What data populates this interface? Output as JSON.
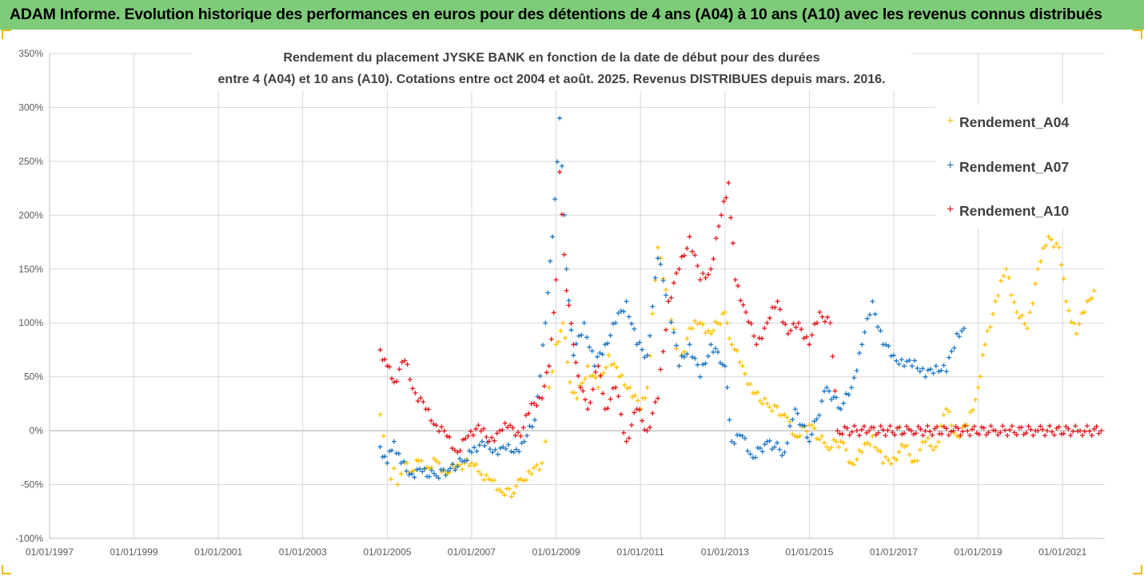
{
  "banner": {
    "title": "ADAM Informe. Evolution historique des performances en euros pour des détentions de 4 ans (A04) à 10 ans (A10) avec les revenus connus distribués"
  },
  "colors": {
    "banner_bg": "#7ecb7a",
    "A04": "#ffc000",
    "A07": "#1f77c4",
    "A10": "#e8141b",
    "grid": "#d9d9d9",
    "axis_text": "#595959"
  },
  "chart_data": {
    "type": "scatter",
    "title_lines": [
      "Rendement du placement JYSKE BANK en fonction de la date de début pour des durées",
      "entre 4 (A04) et 10 ans (A10). Cotations entre oct 2004 et août. 2025. Revenus DISTRIBUES depuis mars. 2016."
    ],
    "xlabel": "",
    "ylabel": "",
    "x_ticks": [
      "01/01/1997",
      "01/01/1999",
      "01/01/2001",
      "01/01/2003",
      "01/01/2005",
      "01/01/2007",
      "01/01/2009",
      "01/01/2011",
      "01/01/2013",
      "01/01/2015",
      "01/01/2017",
      "01/01/2019",
      "01/01/2021"
    ],
    "x_range": [
      "1997-01-01",
      "2022-01-01"
    ],
    "y_ticks": [
      "350%",
      "300%",
      "250%",
      "200%",
      "150%",
      "100%",
      "50%",
      "0%",
      "-50%",
      "-100%"
    ],
    "y_range": [
      -100,
      350
    ],
    "grid": "vertical+horizontal",
    "legend_position": "right",
    "marker": "+",
    "series": [
      {
        "name": "Rendement_A04",
        "points": [
          [
            "2004-11-01",
            15
          ],
          [
            "2004-12-01",
            -5
          ],
          [
            "2005-01-01",
            -30
          ],
          [
            "2005-02-01",
            -45
          ],
          [
            "2005-03-01",
            -35
          ],
          [
            "2005-04-01",
            -50
          ],
          [
            "2005-05-01",
            -40
          ],
          [
            "2005-06-01",
            -30
          ],
          [
            "2005-08-01",
            -38
          ],
          [
            "2005-10-01",
            -28
          ],
          [
            "2006-01-01",
            -35
          ],
          [
            "2006-03-01",
            -28
          ],
          [
            "2006-06-01",
            -40
          ],
          [
            "2006-09-01",
            -32
          ],
          [
            "2007-01-01",
            -30
          ],
          [
            "2007-03-01",
            -38
          ],
          [
            "2007-06-01",
            -45
          ],
          [
            "2007-09-01",
            -55
          ],
          [
            "2008-01-01",
            -58
          ],
          [
            "2008-03-01",
            -45
          ],
          [
            "2008-06-01",
            -40
          ],
          [
            "2008-09-01",
            -30
          ],
          [
            "2008-10-01",
            -10
          ],
          [
            "2008-11-01",
            40
          ],
          [
            "2008-12-01",
            55
          ],
          [
            "2009-01-01",
            80
          ],
          [
            "2009-03-01",
            100
          ],
          [
            "2009-05-01",
            45
          ],
          [
            "2009-07-01",
            30
          ],
          [
            "2009-10-01",
            60
          ],
          [
            "2010-01-01",
            40
          ],
          [
            "2010-04-01",
            70
          ],
          [
            "2010-07-01",
            50
          ],
          [
            "2010-10-01",
            40
          ],
          [
            "2011-01-01",
            20
          ],
          [
            "2011-03-01",
            40
          ],
          [
            "2011-06-01",
            170
          ],
          [
            "2011-09-01",
            120
          ],
          [
            "2011-12-01",
            60
          ],
          [
            "2012-03-01",
            95
          ],
          [
            "2012-06-01",
            100
          ],
          [
            "2012-09-01",
            90
          ],
          [
            "2013-01-01",
            110
          ],
          [
            "2013-03-01",
            80
          ],
          [
            "2013-06-01",
            60
          ],
          [
            "2013-09-01",
            35
          ],
          [
            "2014-01-01",
            25
          ],
          [
            "2014-06-01",
            15
          ],
          [
            "2014-09-01",
            -5
          ],
          [
            "2015-01-01",
            5
          ],
          [
            "2015-06-01",
            -15
          ],
          [
            "2015-10-01",
            -10
          ],
          [
            "2016-01-01",
            -30
          ],
          [
            "2016-04-01",
            -20
          ],
          [
            "2016-07-01",
            -5
          ],
          [
            "2016-10-01",
            -30
          ],
          [
            "2017-01-01",
            -25
          ],
          [
            "2017-04-01",
            -15
          ],
          [
            "2017-07-01",
            -28
          ],
          [
            "2017-10-01",
            -10
          ],
          [
            "2018-01-01",
            -15
          ],
          [
            "2018-04-01",
            20
          ],
          [
            "2018-07-01",
            -5
          ],
          [
            "2018-10-01",
            5
          ],
          [
            "2019-01-01",
            40
          ],
          [
            "2019-03-01",
            80
          ],
          [
            "2019-06-01",
            120
          ],
          [
            "2019-09-01",
            150
          ],
          [
            "2019-12-01",
            110
          ],
          [
            "2020-03-01",
            95
          ],
          [
            "2020-06-01",
            150
          ],
          [
            "2020-09-01",
            180
          ],
          [
            "2020-12-01",
            170
          ],
          [
            "2021-02-01",
            120
          ],
          [
            "2021-05-01",
            90
          ],
          [
            "2021-08-01",
            120
          ],
          [
            "2021-10-01",
            130
          ]
        ]
      },
      {
        "name": "Rendement_A07",
        "points": [
          [
            "2004-11-01",
            -15
          ],
          [
            "2005-01-01",
            -30
          ],
          [
            "2005-03-01",
            -10
          ],
          [
            "2005-05-01",
            -30
          ],
          [
            "2005-08-01",
            -40
          ],
          [
            "2005-11-01",
            -38
          ],
          [
            "2006-03-01",
            -42
          ],
          [
            "2006-07-01",
            -35
          ],
          [
            "2006-11-01",
            -28
          ],
          [
            "2007-01-01",
            -20
          ],
          [
            "2007-04-01",
            -10
          ],
          [
            "2007-07-01",
            -20
          ],
          [
            "2007-10-01",
            -15
          ],
          [
            "2008-01-01",
            -20
          ],
          [
            "2008-04-01",
            -10
          ],
          [
            "2008-07-01",
            10
          ],
          [
            "2008-10-01",
            100
          ],
          [
            "2008-12-01",
            180
          ],
          [
            "2009-02-01",
            290
          ],
          [
            "2009-04-01",
            150
          ],
          [
            "2009-06-01",
            70
          ],
          [
            "2009-09-01",
            100
          ],
          [
            "2009-12-01",
            60
          ],
          [
            "2010-03-01",
            80
          ],
          [
            "2010-06-01",
            100
          ],
          [
            "2010-09-01",
            120
          ],
          [
            "2010-12-01",
            80
          ],
          [
            "2011-03-01",
            70
          ],
          [
            "2011-06-01",
            160
          ],
          [
            "2011-09-01",
            120
          ],
          [
            "2011-12-01",
            60
          ],
          [
            "2012-03-01",
            80
          ],
          [
            "2012-06-01",
            50
          ],
          [
            "2012-09-01",
            80
          ],
          [
            "2013-01-01",
            60
          ],
          [
            "2013-03-01",
            -10
          ],
          [
            "2013-06-01",
            -5
          ],
          [
            "2013-09-01",
            -25
          ],
          [
            "2014-01-01",
            -10
          ],
          [
            "2014-06-01",
            -20
          ],
          [
            "2014-09-01",
            20
          ],
          [
            "2015-01-01",
            -10
          ],
          [
            "2015-06-01",
            40
          ],
          [
            "2015-10-01",
            20
          ],
          [
            "2016-01-01",
            40
          ],
          [
            "2016-04-01",
            80
          ],
          [
            "2016-07-01",
            120
          ],
          [
            "2016-10-01",
            80
          ],
          [
            "2017-01-01",
            70
          ],
          [
            "2017-04-01",
            60
          ],
          [
            "2017-07-01",
            65
          ],
          [
            "2017-10-01",
            50
          ],
          [
            "2018-01-01",
            60
          ],
          [
            "2018-04-01",
            55
          ],
          [
            "2018-07-01",
            90
          ],
          [
            "2018-09-01",
            95
          ]
        ]
      },
      {
        "name": "Rendement_A10",
        "points": [
          [
            "2004-11-01",
            75
          ],
          [
            "2005-01-01",
            60
          ],
          [
            "2005-03-01",
            45
          ],
          [
            "2005-06-01",
            65
          ],
          [
            "2005-09-01",
            35
          ],
          [
            "2005-12-01",
            20
          ],
          [
            "2006-03-01",
            5
          ],
          [
            "2006-06-01",
            -5
          ],
          [
            "2006-09-01",
            -20
          ],
          [
            "2006-12-01",
            -5
          ],
          [
            "2007-03-01",
            5
          ],
          [
            "2007-06-01",
            -10
          ],
          [
            "2007-09-01",
            0
          ],
          [
            "2007-12-01",
            5
          ],
          [
            "2008-03-01",
            -5
          ],
          [
            "2008-06-01",
            25
          ],
          [
            "2008-09-01",
            30
          ],
          [
            "2008-11-01",
            60
          ],
          [
            "2009-01-01",
            140
          ],
          [
            "2009-02-01",
            240
          ],
          [
            "2009-04-01",
            130
          ],
          [
            "2009-06-01",
            80
          ],
          [
            "2009-08-01",
            40
          ],
          [
            "2009-10-01",
            20
          ],
          [
            "2010-01-01",
            60
          ],
          [
            "2010-03-01",
            20
          ],
          [
            "2010-06-01",
            40
          ],
          [
            "2010-09-01",
            -10
          ],
          [
            "2010-12-01",
            20
          ],
          [
            "2011-03-01",
            0
          ],
          [
            "2011-06-01",
            30
          ],
          [
            "2011-09-01",
            120
          ],
          [
            "2011-12-01",
            150
          ],
          [
            "2012-03-01",
            180
          ],
          [
            "2012-06-01",
            140
          ],
          [
            "2012-09-01",
            150
          ],
          [
            "2012-12-01",
            200
          ],
          [
            "2013-02-01",
            230
          ],
          [
            "2013-04-01",
            140
          ],
          [
            "2013-07-01",
            110
          ],
          [
            "2013-10-01",
            80
          ],
          [
            "2014-01-01",
            100
          ],
          [
            "2014-04-01",
            120
          ],
          [
            "2014-07-01",
            90
          ],
          [
            "2014-10-01",
            100
          ],
          [
            "2015-01-01",
            80
          ],
          [
            "2015-04-01",
            110
          ],
          [
            "2015-07-01",
            100
          ],
          [
            "2015-09-01",
            0
          ],
          [
            "2016-06-01",
            0
          ],
          [
            "2017-06-01",
            0
          ],
          [
            "2018-06-01",
            0
          ],
          [
            "2019-06-01",
            0
          ],
          [
            "2020-06-01",
            0
          ],
          [
            "2021-06-01",
            0
          ],
          [
            "2021-12-01",
            0
          ]
        ]
      }
    ]
  }
}
